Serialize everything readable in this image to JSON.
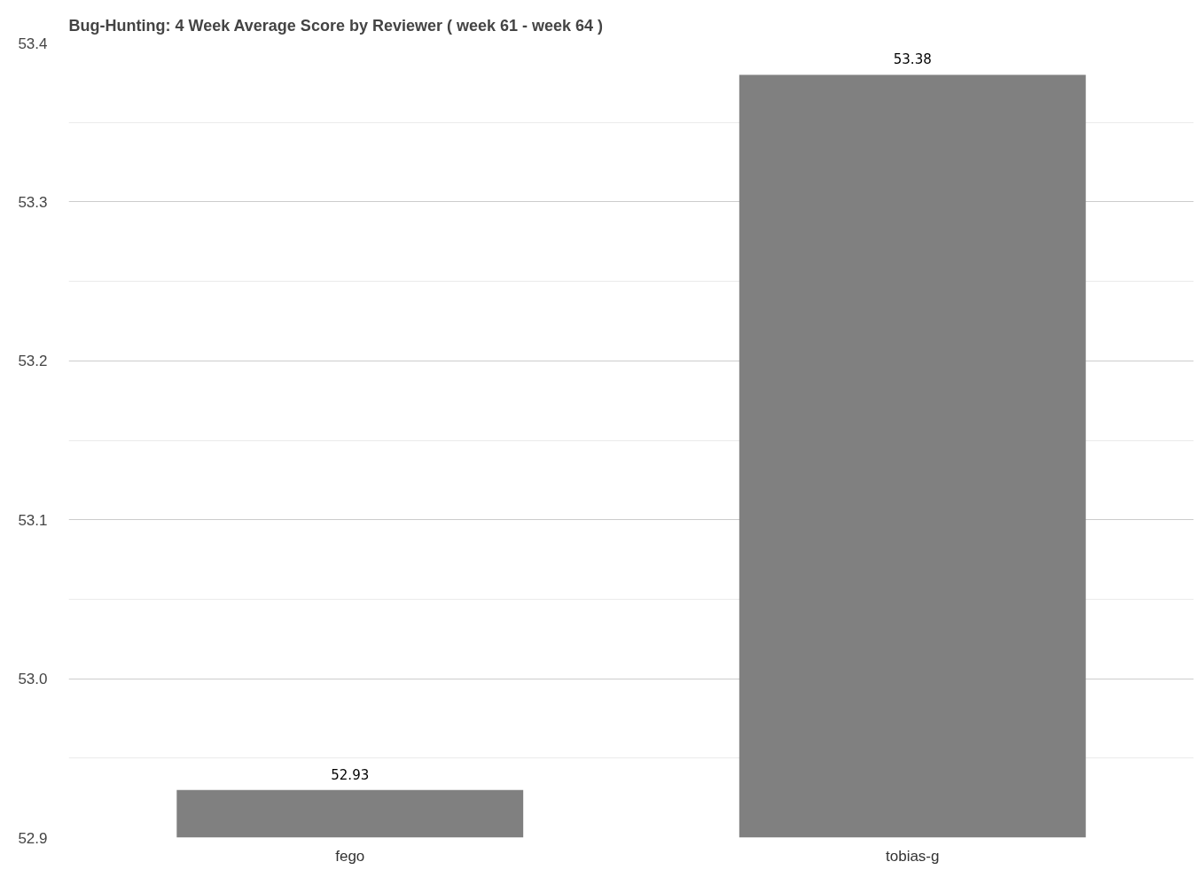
{
  "chart_data": {
    "type": "bar",
    "title": "Bug-Hunting: 4 Week Average Score by Reviewer ( week 61 - week 64 )",
    "categories": [
      "fego",
      "tobias-g"
    ],
    "values": [
      52.93,
      53.38
    ],
    "color": "#808080",
    "ylim": [
      52.9,
      53.4
    ],
    "yticks": [
      {
        "value": 52.9,
        "label": "52.9"
      },
      {
        "value": 52.95,
        "label": null
      },
      {
        "value": 53.0,
        "label": "53.0"
      },
      {
        "value": 53.05,
        "label": null
      },
      {
        "value": 53.1,
        "label": "53.1"
      },
      {
        "value": 53.15,
        "label": null
      },
      {
        "value": 53.2,
        "label": "53.2"
      },
      {
        "value": 53.25,
        "label": null
      },
      {
        "value": 53.3,
        "label": "53.3"
      },
      {
        "value": 53.35,
        "label": null
      },
      {
        "value": 53.4,
        "label": "53.4"
      }
    ],
    "grid": "y",
    "data_labels": true
  }
}
